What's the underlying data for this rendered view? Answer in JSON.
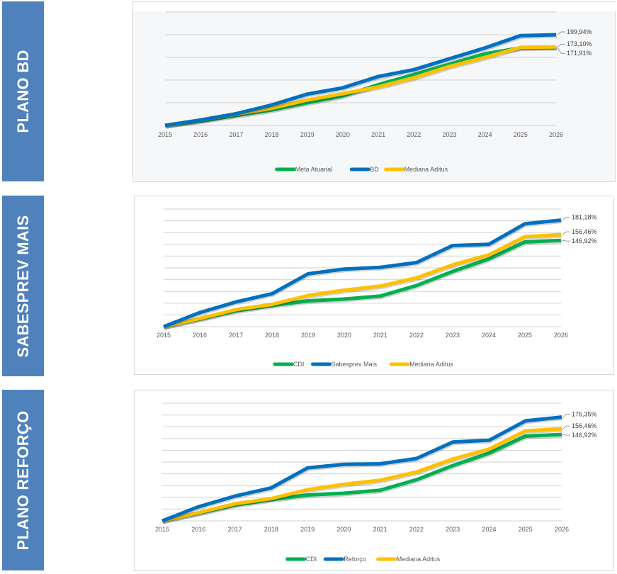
{
  "sections": [
    {
      "title": "PLANO BD"
    },
    {
      "title": "SABESPREV MAIS"
    },
    {
      "title": "PLANO REFORÇO"
    }
  ],
  "chart_data": [
    {
      "type": "line",
      "title": "PLANO BD",
      "x": [
        "2015",
        "2016",
        "2017",
        "2018",
        "2019",
        "2020",
        "2021",
        "2022",
        "2023",
        "2024",
        "2025",
        "2026"
      ],
      "ylim": [
        0,
        250
      ],
      "yticks": [
        0,
        50,
        100,
        150,
        200,
        250
      ],
      "grid": true,
      "legend_position": "bottom",
      "series": [
        {
          "name": "Meta Atuarial",
          "color": "#00b050",
          "values": [
            0,
            10,
            22,
            34,
            50,
            65,
            90,
            112,
            135,
            158,
            171,
            171.91
          ],
          "end_label": "171,91%"
        },
        {
          "name": "BD",
          "color": "#0070c0",
          "values": [
            0,
            12,
            26,
            45,
            69,
            83,
            108,
            123,
            147,
            171,
            198,
            199.94
          ],
          "end_label": "199,94%"
        },
        {
          "name": "Mediana Aditus",
          "color": "#ffc000",
          "values": [
            0,
            12,
            25,
            38,
            56,
            70,
            85,
            105,
            130,
            150,
            172,
            173.1
          ],
          "end_label": "173,10%"
        }
      ]
    },
    {
      "type": "line",
      "title": "SABESPREV MAIS",
      "x": [
        "2015",
        "2016",
        "2017",
        "2018",
        "2019",
        "2020",
        "2021",
        "2022",
        "2023",
        "2024",
        "2025",
        "2026"
      ],
      "ylim": [
        0,
        200
      ],
      "yticks": [
        0,
        20,
        40,
        60,
        80,
        100,
        120,
        140,
        160,
        180,
        200
      ],
      "grid": true,
      "legend_position": "bottom",
      "series": [
        {
          "name": "CDI",
          "color": "#00b050",
          "values": [
            0,
            13,
            27,
            36,
            44,
            47,
            52,
            70,
            94,
            115,
            144,
            146.92
          ],
          "end_label": "146,92%"
        },
        {
          "name": "Sabesprev Mais",
          "color": "#0070c0",
          "values": [
            0,
            24,
            42,
            56,
            90,
            98,
            101,
            109,
            138,
            140,
            175,
            181.18
          ],
          "end_label": "181,18%"
        },
        {
          "name": "Mediana Aditus",
          "color": "#ffc000",
          "values": [
            0,
            14,
            29,
            38,
            53,
            62,
            69,
            83,
            105,
            122,
            153,
            156.46
          ],
          "end_label": "156,46%"
        }
      ]
    },
    {
      "type": "line",
      "title": "PLANO REFORÇO",
      "x": [
        "2015",
        "2016",
        "2017",
        "2018",
        "2019",
        "2020",
        "2021",
        "2022",
        "2023",
        "2024",
        "2025",
        "2026"
      ],
      "ylim": [
        0,
        200
      ],
      "yticks": [
        0,
        20,
        40,
        60,
        80,
        100,
        120,
        140,
        160,
        180,
        200
      ],
      "grid": true,
      "legend_position": "bottom",
      "series": [
        {
          "name": "CDI",
          "color": "#00b050",
          "values": [
            0,
            13,
            27,
            36,
            44,
            47,
            52,
            70,
            94,
            115,
            144,
            146.92
          ],
          "end_label": "146,92%"
        },
        {
          "name": "Reforço",
          "color": "#0070c0",
          "values": [
            0,
            24,
            42,
            56,
            90,
            96,
            97,
            106,
            134,
            137,
            170,
            176.35
          ],
          "end_label": "176,35%"
        },
        {
          "name": "Mediana Aditus",
          "color": "#ffc000",
          "values": [
            0,
            14,
            29,
            38,
            53,
            62,
            69,
            83,
            105,
            122,
            153,
            156.46
          ],
          "end_label": "156,46%"
        }
      ]
    }
  ]
}
